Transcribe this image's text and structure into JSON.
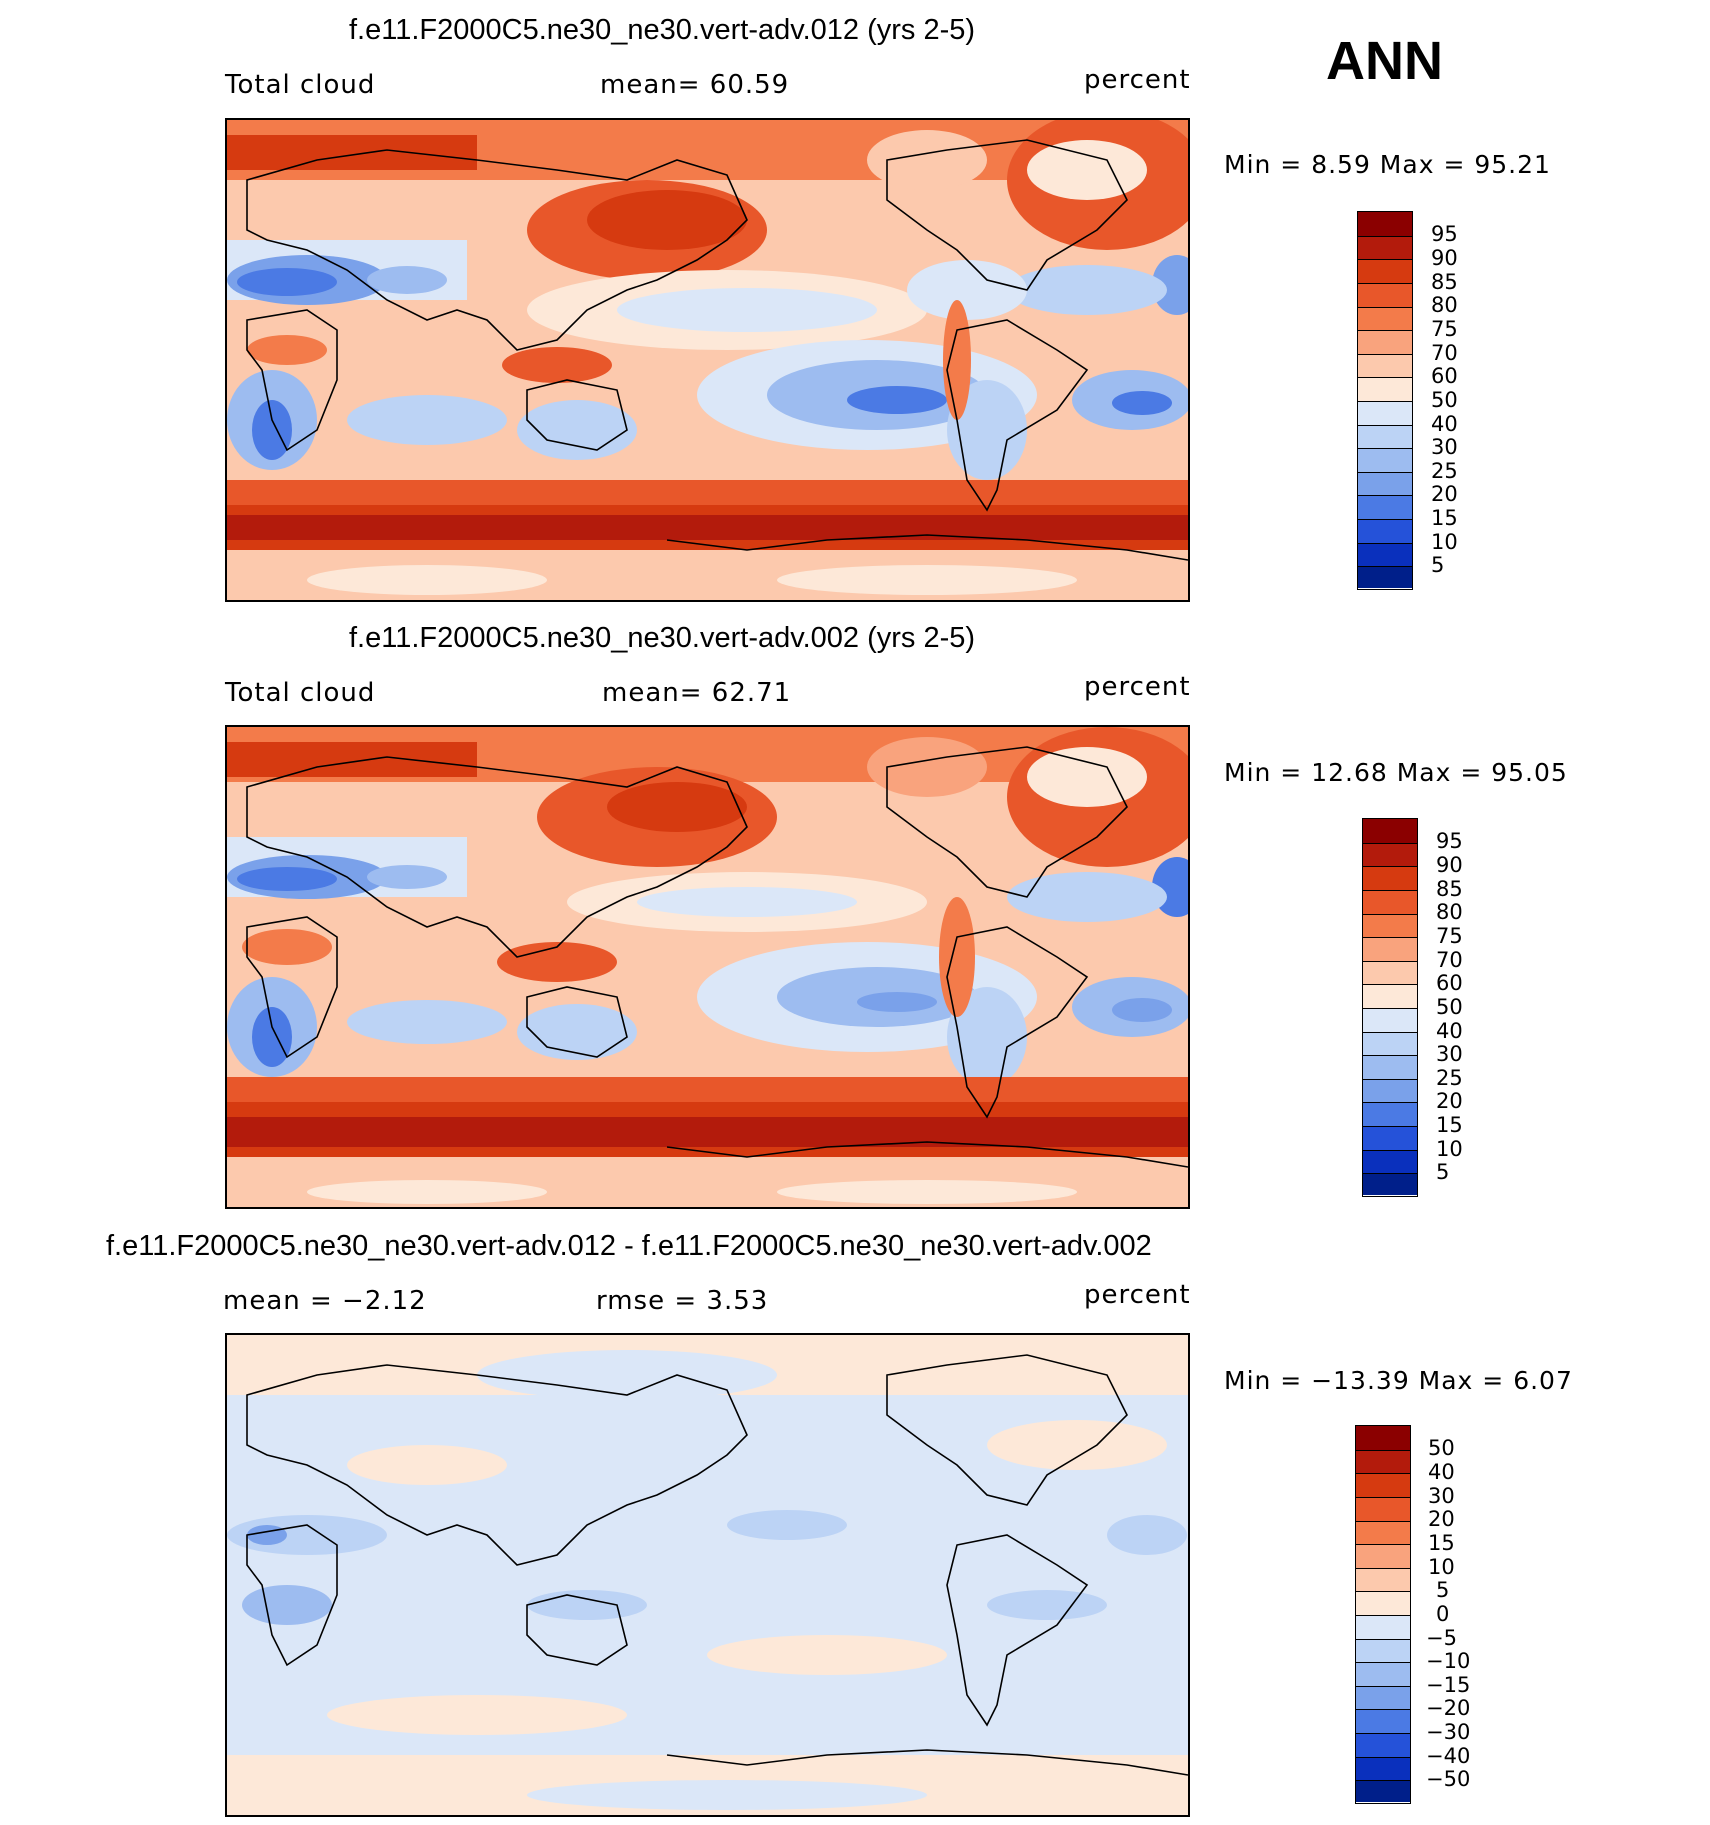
{
  "season_label": "ANN",
  "panels": [
    {
      "title": "f.e11.F2000C5.ne30_ne30.vert-adv.012 (yrs 2-5)",
      "left_label": "Total cloud",
      "center_label": "mean=  60.59",
      "right_label": "percent",
      "minmax": "Min =   8.59 Max =  95.21",
      "colorbar_labels": [
        "95",
        "90",
        "85",
        "80",
        "75",
        "70",
        "60",
        "50",
        "40",
        "30",
        "25",
        "20",
        "15",
        "10",
        "5"
      ]
    },
    {
      "title": "f.e11.F2000C5.ne30_ne30.vert-adv.002 (yrs 2-5)",
      "left_label": "Total cloud",
      "center_label": "mean=  62.71",
      "right_label": "percent",
      "minmax": "Min =  12.68 Max =  95.05",
      "colorbar_labels": [
        "95",
        "90",
        "85",
        "80",
        "75",
        "70",
        "60",
        "50",
        "40",
        "30",
        "25",
        "20",
        "15",
        "10",
        "5"
      ]
    },
    {
      "title": "f.e11.F2000C5.ne30_ne30.vert-adv.012 - f.e11.F2000C5.ne30_ne30.vert-adv.002",
      "left_label": "mean =  −2.12",
      "center_label": "rmse =   3.53",
      "right_label": "percent",
      "minmax": "Min = −13.39 Max =   6.07",
      "colorbar_labels": [
        "50",
        "40",
        "30",
        "20",
        "15",
        "10",
        "5",
        "0",
        "−5",
        "−10",
        "−15",
        "−20",
        "−30",
        "−40",
        "−50"
      ]
    }
  ],
  "colors": {
    "scale": [
      "#8b0000",
      "#b31b0c",
      "#d63a10",
      "#e8572a",
      "#f37b4a",
      "#f9a37d",
      "#fcc9ad",
      "#fde8d8",
      "#dbe7f8",
      "#bcd3f5",
      "#9dbcf0",
      "#7aa1ea",
      "#4b7ae4",
      "#2552d9",
      "#0a30bd",
      "#001f8a"
    ]
  }
}
